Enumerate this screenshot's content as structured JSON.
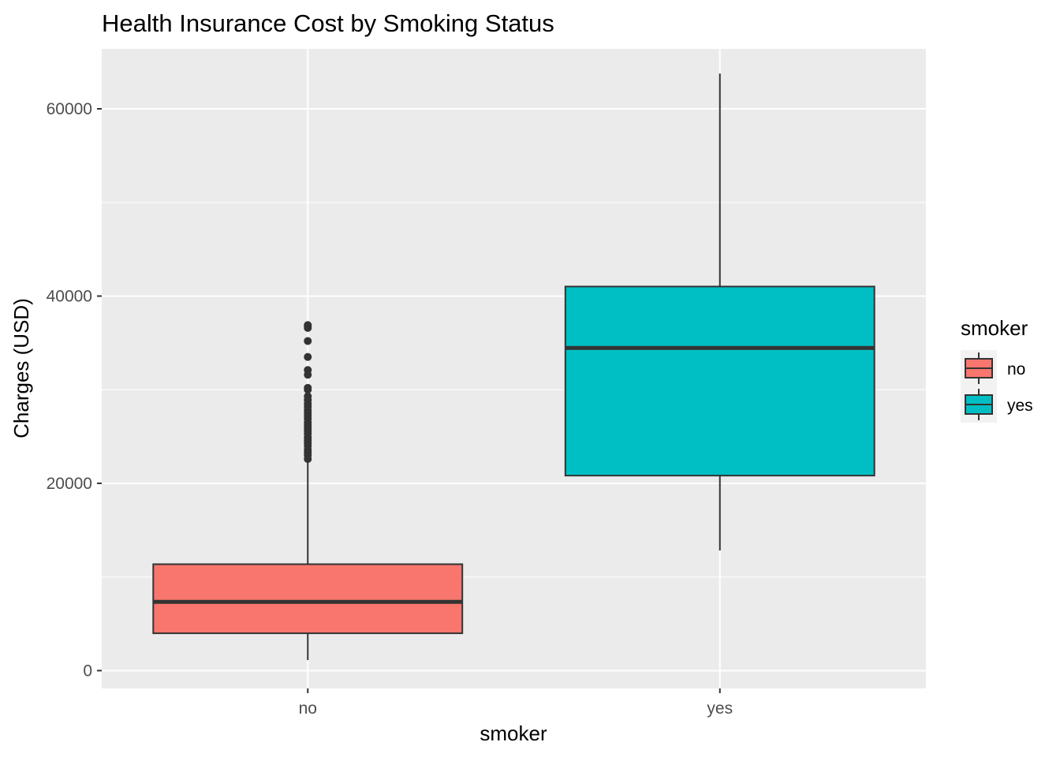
{
  "chart_data": {
    "type": "boxplot",
    "title": "Health Insurance Cost by Smoking Status",
    "xlabel": "smoker",
    "ylabel": "Charges (USD)",
    "ylim": [
      -1900,
      66400
    ],
    "y_ticks": [
      0,
      20000,
      40000,
      60000
    ],
    "y_tick_labels": [
      "0",
      "20000",
      "40000",
      "60000"
    ],
    "categories": [
      "no",
      "yes"
    ],
    "grid": true,
    "legend": {
      "title": "smoker",
      "placement": "right",
      "entries": [
        "no",
        "yes"
      ]
    },
    "boxes": [
      {
        "category": "no",
        "color": "#F8766D",
        "whisker_low": 1122,
        "q1": 3986,
        "median": 7345,
        "q3": 11363,
        "whisker_high": 22400,
        "outliers": [
          22600,
          23000,
          23300,
          23600,
          24000,
          24300,
          24600,
          24900,
          25300,
          25600,
          25900,
          26200,
          26500,
          26900,
          27200,
          27500,
          27800,
          28200,
          28500,
          28900,
          29300,
          30000,
          30200,
          31600,
          32100,
          33500,
          35200,
          36600,
          36800,
          36900
        ]
      },
      {
        "category": "yes",
        "color": "#00BFC4",
        "whisker_low": 12829,
        "q1": 20826,
        "median": 34456,
        "q3": 41019,
        "whisker_high": 63770,
        "outliers": []
      }
    ],
    "colors": {
      "panel_background": "#EBEBEB",
      "grid": "#FFFFFF",
      "box_outline": "#333333",
      "no": "#F8766D",
      "yes": "#00BFC4"
    }
  }
}
